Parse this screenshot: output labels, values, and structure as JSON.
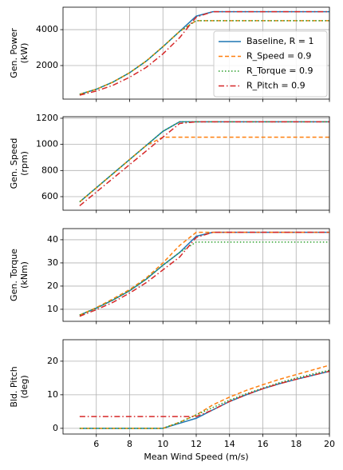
{
  "chart_data": [
    {
      "type": "line",
      "ylabel": [
        "Gen. Power",
        "(kW)"
      ],
      "legend": "lower right",
      "grid": true,
      "x": [
        5,
        6,
        7,
        8,
        9,
        10,
        11,
        12,
        13,
        14,
        15,
        16,
        17,
        18,
        19,
        20
      ],
      "xlim": [
        4,
        20
      ],
      "ylim": [
        130,
        5250
      ],
      "yticks": [
        2000,
        4000
      ],
      "series": [
        {
          "name": "Baseline, R = 1",
          "color": "#1f77b4",
          "dash": "solid",
          "values": [
            400,
            680,
            1080,
            1600,
            2250,
            3050,
            3900,
            4750,
            5000,
            5000,
            5000,
            5000,
            5000,
            5000,
            5000,
            5000
          ]
        },
        {
          "name": "R_Speed = 0.9",
          "color": "#ff7f0e",
          "dash": "dashed",
          "values": [
            400,
            680,
            1080,
            1600,
            2250,
            3050,
            3900,
            4500,
            4500,
            4500,
            4500,
            4500,
            4500,
            4500,
            4500,
            4500
          ]
        },
        {
          "name": "R_Torque = 0.9",
          "color": "#2ca02c",
          "dash": "dotted",
          "values": [
            400,
            680,
            1080,
            1600,
            2250,
            3050,
            3900,
            4500,
            4500,
            4500,
            4500,
            4500,
            4500,
            4500,
            4500,
            4500
          ]
        },
        {
          "name": "R_Pitch = 0.9",
          "color": "#d62728",
          "dash": "dashdot",
          "values": [
            350,
            580,
            900,
            1350,
            1900,
            2650,
            3550,
            4700,
            5000,
            5000,
            5000,
            5000,
            5000,
            5000,
            5000,
            5000
          ]
        }
      ]
    },
    {
      "type": "line",
      "ylabel": [
        "Gen. Speed",
        "(rpm)"
      ],
      "grid": true,
      "x": [
        5,
        6,
        7,
        8,
        9,
        10,
        11,
        12,
        13,
        14,
        15,
        16,
        17,
        18,
        19,
        20
      ],
      "xlim": [
        4,
        20
      ],
      "ylim": [
        496,
        1212
      ],
      "yticks": [
        600,
        800,
        1000,
        1200
      ],
      "series": [
        {
          "color": "#1f77b4",
          "dash": "solid",
          "values": [
            560,
            668,
            776,
            884,
            992,
            1100,
            1173,
            1173,
            1173,
            1173,
            1173,
            1173,
            1173,
            1173,
            1173,
            1173
          ]
        },
        {
          "color": "#ff7f0e",
          "dash": "dashed",
          "values": [
            560,
            668,
            776,
            884,
            992,
            1055,
            1055,
            1055,
            1055,
            1055,
            1055,
            1055,
            1055,
            1055,
            1055,
            1055
          ]
        },
        {
          "color": "#2ca02c",
          "dash": "dotted",
          "values": [
            560,
            668,
            776,
            884,
            992,
            1100,
            1173,
            1173,
            1173,
            1173,
            1173,
            1173,
            1173,
            1173,
            1173,
            1173
          ]
        },
        {
          "color": "#d62728",
          "dash": "dashdot",
          "values": [
            530,
            635,
            740,
            845,
            950,
            1055,
            1160,
            1173,
            1173,
            1173,
            1173,
            1173,
            1173,
            1173,
            1173,
            1173
          ]
        }
      ]
    },
    {
      "type": "line",
      "ylabel": [
        "Gen. Torque",
        "(kNm)"
      ],
      "grid": true,
      "x": [
        5,
        6,
        7,
        8,
        9,
        10,
        11,
        12,
        13,
        14,
        15,
        16,
        17,
        18,
        19,
        20
      ],
      "xlim": [
        4,
        20
      ],
      "ylim": [
        4.8,
        44.8
      ],
      "yticks": [
        10,
        20,
        30,
        40
      ],
      "series": [
        {
          "color": "#1f77b4",
          "dash": "solid",
          "values": [
            7.5,
            10.5,
            14,
            18,
            23,
            29,
            34.5,
            41.5,
            43.2,
            43.2,
            43.2,
            43.2,
            43.2,
            43.2,
            43.2,
            43.2
          ]
        },
        {
          "color": "#ff7f0e",
          "dash": "dashed",
          "values": [
            7.5,
            10.7,
            14.5,
            18.5,
            23.5,
            30,
            37.5,
            43.2,
            43.2,
            43.2,
            43.2,
            43.2,
            43.2,
            43.2,
            43.2,
            43.2
          ]
        },
        {
          "color": "#2ca02c",
          "dash": "dotted",
          "values": [
            7.5,
            10.5,
            14,
            18,
            23,
            29,
            34.5,
            39,
            39,
            39,
            39,
            39,
            39,
            39,
            39,
            39
          ]
        },
        {
          "color": "#d62728",
          "dash": "dashdot",
          "values": [
            7,
            9.8,
            13,
            17,
            21.5,
            27,
            32.5,
            41,
            43.2,
            43.2,
            43.2,
            43.2,
            43.2,
            43.2,
            43.2,
            43.2
          ]
        }
      ]
    },
    {
      "type": "line",
      "ylabel": [
        "Bld. Pitch",
        "(deg)"
      ],
      "xlabel": "Mean Wind Speed (m/s)",
      "grid": true,
      "x": [
        5,
        6,
        7,
        8,
        9,
        10,
        11,
        12,
        13,
        14,
        15,
        16,
        17,
        18,
        19,
        20
      ],
      "xlim": [
        4,
        20
      ],
      "xticks": [
        6,
        8,
        10,
        12,
        14,
        16,
        18,
        20
      ],
      "ylim": [
        -1.7,
        26.4
      ],
      "yticks": [
        0,
        10,
        20
      ],
      "series": [
        {
          "color": "#1f77b4",
          "dash": "solid",
          "values": [
            0,
            0,
            0,
            0,
            0,
            0,
            1.5,
            3,
            5.5,
            8,
            10,
            11.8,
            13.3,
            14.6,
            15.8,
            17
          ]
        },
        {
          "color": "#ff7f0e",
          "dash": "dashed",
          "values": [
            0,
            0,
            0,
            0,
            0,
            0,
            1.8,
            4,
            7,
            9.3,
            11.3,
            13,
            14.6,
            16,
            17.4,
            18.8
          ]
        },
        {
          "color": "#2ca02c",
          "dash": "dotted",
          "values": [
            0,
            0,
            0,
            0,
            0,
            0,
            1.8,
            4,
            6.2,
            8.4,
            10.3,
            12,
            13.6,
            15,
            16.2,
            17.3
          ]
        },
        {
          "color": "#d62728",
          "dash": "dashdot",
          "values": [
            3.5,
            3.5,
            3.5,
            3.5,
            3.5,
            3.5,
            3.5,
            3.5,
            5.5,
            8,
            10,
            11.8,
            13.3,
            14.6,
            15.8,
            17
          ]
        }
      ]
    }
  ]
}
